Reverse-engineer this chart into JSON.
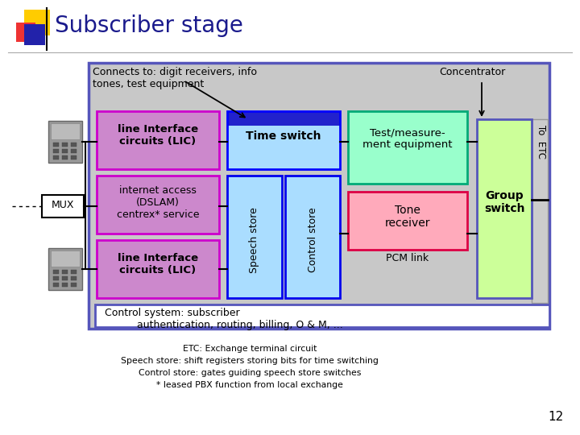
{
  "title": "Subscriber stage",
  "title_color": "#1a1a8c",
  "title_fontsize": 20,
  "bg_color": "#ffffff",
  "connects_text": "Connects to: digit receivers, info\ntones, test equipment",
  "concentrator_text": "Concentrator",
  "control_system_text": "Control system: subscriber\n          authentication, routing, billing, O & M, ...",
  "footer_lines": [
    "ETC: Exchange terminal circuit",
    "Speech store: shift registers storing bits for time switching",
    "Control store: gates guiding speech store switches",
    "* leased PBX function from local exchange"
  ],
  "page_number": "12",
  "outer_box_color": "#5555bb",
  "outer_box_fill": "#c8c8c8",
  "lic_fill": "#cc88cc",
  "lic_border": "#cc00cc",
  "internet_fill": "#cc88cc",
  "internet_border": "#cc00cc",
  "timeswitch_fill": "#aaddff",
  "timeswitch_border": "#0000ff",
  "timeswitch_header_fill": "#2222cc",
  "speech_fill": "#aaddff",
  "speech_border": "#0000ee",
  "control_fill": "#aaddff",
  "control_border": "#0000ee",
  "test_fill": "#99ffcc",
  "test_border": "#00aa77",
  "tone_fill": "#ffaabb",
  "tone_border": "#dd0044",
  "group_fill": "#ccff99",
  "group_border": "#5555bb",
  "inner_box_fill": "#ffffff",
  "inner_box_border": "#5555bb"
}
